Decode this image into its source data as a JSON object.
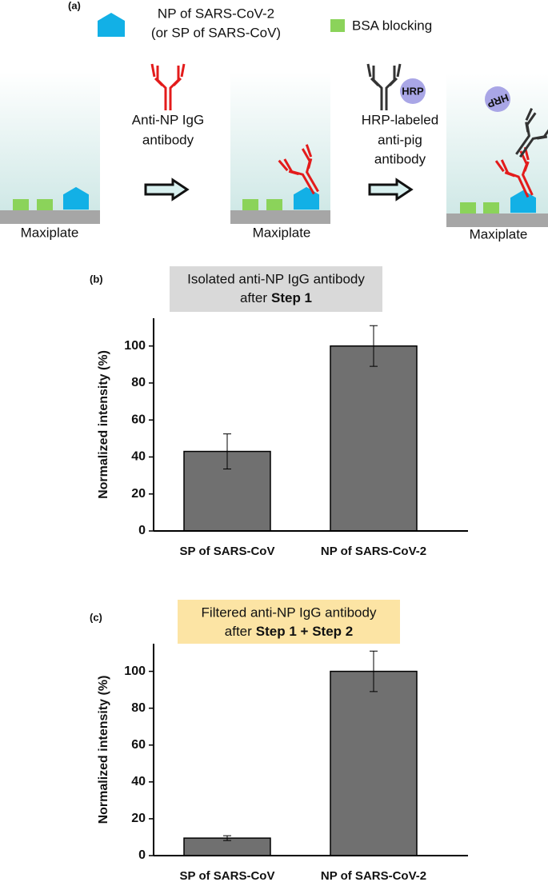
{
  "panel_a": {
    "panel_label": "(a)",
    "legend_np_line1": "NP of SARS-CoV-2",
    "legend_np_line2": "(or SP of SARS-CoV)",
    "legend_bsa": "BSA blocking",
    "step1_line1": "Anti-NP IgG",
    "step1_line2": "antibody",
    "step2_line1": "HRP-labeled",
    "step2_line2": "anti-pig",
    "step2_line3": "antibody",
    "hrp_icon": "HRP",
    "hrp_bound": "HRP",
    "plate_1": "Maxiplate",
    "plate_2": "Maxiplate",
    "plate_3": "Maxiplate"
  },
  "chart_data": [
    {
      "type": "bar",
      "panel_label": "(b)",
      "title_line1": "Isolated anti-NP IgG antibody",
      "title_line2": "after",
      "title_line2_bold": "Step 1",
      "title_box_color": "#d9d9d9",
      "ylabel": "Normalized intensity (%)",
      "categories": [
        "SP of SARS-CoV",
        "NP of SARS-CoV-2"
      ],
      "values": [
        43,
        100
      ],
      "errors": [
        9.5,
        11
      ],
      "color": "#707070",
      "ylim": [
        0,
        115
      ],
      "yticks": [
        0,
        20,
        40,
        60,
        80,
        100
      ]
    },
    {
      "type": "bar",
      "panel_label": "(c)",
      "title_line1": "Filtered anti-NP IgG antibody",
      "title_line2": "after",
      "title_line2_bold": "Step 1 + Step 2",
      "title_box_color": "#fce4a4",
      "ylabel": "Normalized intensity (%)",
      "categories": [
        "SP of SARS-CoV",
        "NP of SARS-CoV-2"
      ],
      "values": [
        9.5,
        100
      ],
      "errors": [
        1.3,
        11
      ],
      "color": "#707070",
      "ylim": [
        0,
        115
      ],
      "yticks": [
        0,
        20,
        40,
        60,
        80,
        100
      ]
    }
  ]
}
